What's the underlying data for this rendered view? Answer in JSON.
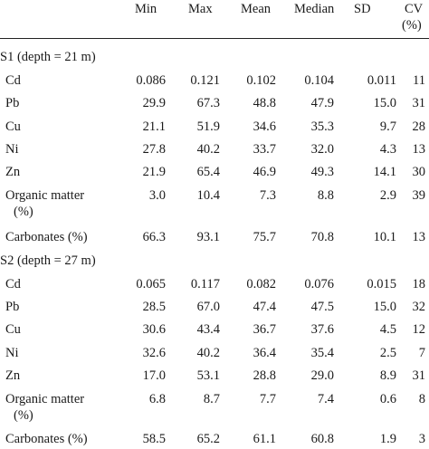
{
  "header": {
    "min": "Min",
    "max": "Max",
    "mean": "Mean",
    "median": "Median",
    "sd": "SD",
    "cv_line1": "CV",
    "cv_line2": "(%)"
  },
  "sections": [
    {
      "title": "S1 (depth = 21 m)",
      "rows": [
        {
          "label": "Cd",
          "min": "0.086",
          "max": "0.121",
          "mean": "0.102",
          "median": "0.104",
          "sd": "0.011",
          "cv": "11"
        },
        {
          "label": "Pb",
          "min": "29.9",
          "max": "67.3",
          "mean": "48.8",
          "median": "47.9",
          "sd": "15.0",
          "cv": "31"
        },
        {
          "label": "Cu",
          "min": "21.1",
          "max": "51.9",
          "mean": "34.6",
          "median": "35.3",
          "sd": "9.7",
          "cv": "28"
        },
        {
          "label": "Ni",
          "min": "27.8",
          "max": "40.2",
          "mean": "33.7",
          "median": "32.0",
          "sd": "4.3",
          "cv": "13"
        },
        {
          "label": "Zn",
          "min": "21.9",
          "max": "65.4",
          "mean": "46.9",
          "median": "49.3",
          "sd": "14.1",
          "cv": "30"
        },
        {
          "label": "Organic matter",
          "label2": "(%)",
          "min": "3.0",
          "max": "10.4",
          "mean": "7.3",
          "median": "8.8",
          "sd": "2.9",
          "cv": "39"
        },
        {
          "label": "Carbonates (%)",
          "min": "66.3",
          "max": "93.1",
          "mean": "75.7",
          "median": "70.8",
          "sd": "10.1",
          "cv": "13"
        }
      ]
    },
    {
      "title": "S2 (depth = 27 m)",
      "rows": [
        {
          "label": "Cd",
          "min": "0.065",
          "max": "0.117",
          "mean": "0.082",
          "median": "0.076",
          "sd": "0.015",
          "cv": "18"
        },
        {
          "label": "Pb",
          "min": "28.5",
          "max": "67.0",
          "mean": "47.4",
          "median": "47.5",
          "sd": "15.0",
          "cv": "32"
        },
        {
          "label": "Cu",
          "min": "30.6",
          "max": "43.4",
          "mean": "36.7",
          "median": "37.6",
          "sd": "4.5",
          "cv": "12"
        },
        {
          "label": "Ni",
          "min": "32.6",
          "max": "40.2",
          "mean": "36.4",
          "median": "35.4",
          "sd": "2.5",
          "cv": "7"
        },
        {
          "label": "Zn",
          "min": "17.0",
          "max": "53.1",
          "mean": "28.8",
          "median": "29.0",
          "sd": "8.9",
          "cv": "31"
        },
        {
          "label": "Organic matter",
          "label2": "(%)",
          "min": "6.8",
          "max": "8.7",
          "mean": "7.7",
          "median": "7.4",
          "sd": "0.6",
          "cv": "8"
        },
        {
          "label": "Carbonates (%)",
          "min": "58.5",
          "max": "65.2",
          "mean": "61.1",
          "median": "60.8",
          "sd": "1.9",
          "cv": "3"
        }
      ]
    }
  ]
}
